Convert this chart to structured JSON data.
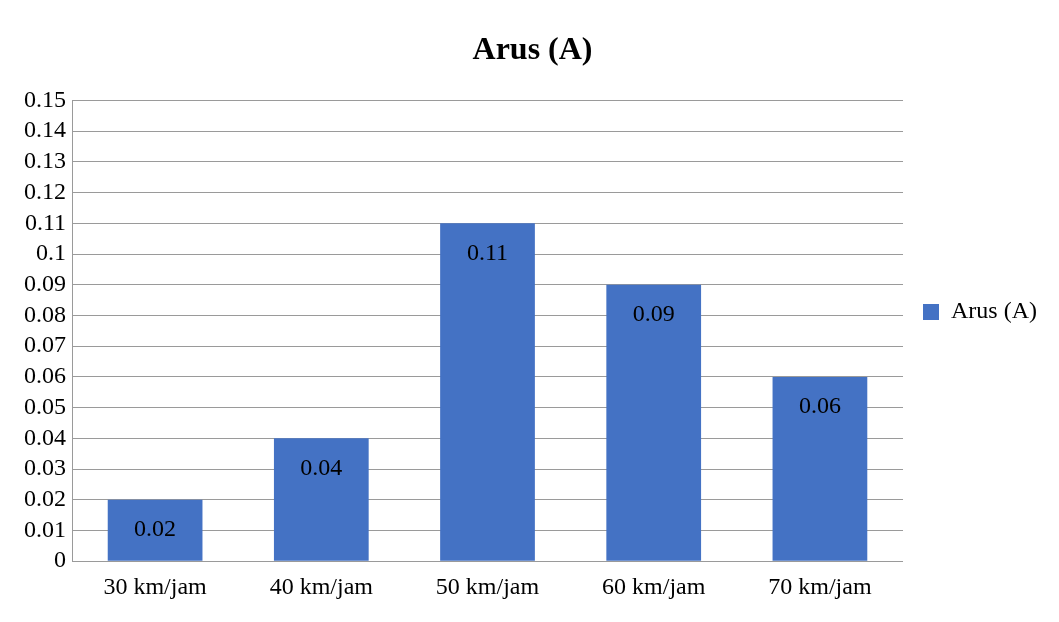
{
  "chart_data": {
    "type": "bar",
    "title": "Arus (A)",
    "categories": [
      "30 km/jam",
      "40 km/jam",
      "50 km/jam",
      "60 km/jam",
      "70 km/jam"
    ],
    "series": [
      {
        "name": "Arus (A)",
        "color": "#4472c4",
        "values": [
          0.02,
          0.04,
          0.11,
          0.09,
          0.06
        ]
      }
    ],
    "ylim": [
      0,
      0.15
    ],
    "yticks": [
      0,
      0.01,
      0.02,
      0.03,
      0.04,
      0.05,
      0.06,
      0.07,
      0.08,
      0.09,
      0.1,
      0.11,
      0.12,
      0.13,
      0.14,
      0.15
    ],
    "grid": "y",
    "legend": "right",
    "data_labels": true
  }
}
